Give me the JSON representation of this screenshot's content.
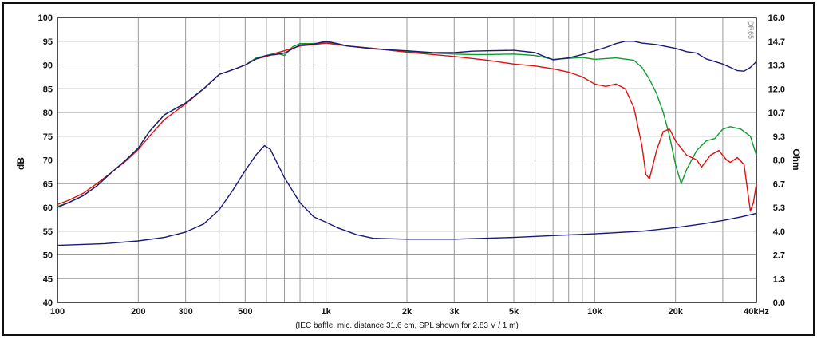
{
  "chart_data": {
    "type": "line",
    "caption": "(IEC baffle, mic. distance 31.6 cm, SPL shown for 2.83 V / 1 m)",
    "watermark": "DR65",
    "x_scale": "log",
    "grid": true,
    "x_ticks": [
      "100",
      "200",
      "300",
      "500",
      "1k",
      "2k",
      "3k",
      "5k",
      "10k",
      "20k",
      "40kHz"
    ],
    "x_tick_values": [
      100,
      200,
      300,
      500,
      1000,
      2000,
      3000,
      5000,
      10000,
      20000,
      40000
    ],
    "xlim": [
      100,
      40000
    ],
    "y_left": {
      "label": "dB",
      "lim": [
        40,
        100
      ],
      "ticks": [
        "100",
        "95",
        "90",
        "85",
        "80",
        "75",
        "70",
        "65",
        "60",
        "55",
        "50",
        "45",
        "40"
      ]
    },
    "y_right": {
      "label": "Ohm",
      "lim": [
        0,
        16
      ],
      "ticks": [
        "16.0",
        "14.7",
        "13.3",
        "12.0",
        "10.7",
        "9.3",
        "8.0",
        "6.7",
        "5.3",
        "4.0",
        "2.7",
        "1.3",
        "0.0"
      ]
    },
    "colors": {
      "red": "#e01010",
      "green": "#109a30",
      "navy": "#1a1a7a",
      "grid": "#9a9a9a"
    },
    "series": [
      {
        "axis": "left",
        "color": "#109a30",
        "points": [
          [
            100,
            60.2
          ],
          [
            110,
            61
          ],
          [
            125,
            62.5
          ],
          [
            140,
            64.5
          ],
          [
            160,
            67.5
          ],
          [
            180,
            70
          ],
          [
            200,
            72.5
          ],
          [
            220,
            76
          ],
          [
            250,
            79.5
          ],
          [
            300,
            82
          ],
          [
            350,
            85
          ],
          [
            400,
            88
          ],
          [
            450,
            89
          ],
          [
            500,
            90
          ],
          [
            550,
            91.5
          ],
          [
            600,
            92
          ],
          [
            650,
            92.5
          ],
          [
            700,
            92
          ],
          [
            750,
            93.8
          ],
          [
            800,
            94.5
          ],
          [
            900,
            94.5
          ],
          [
            1000,
            94.8
          ],
          [
            1100,
            94.5
          ],
          [
            1200,
            94
          ],
          [
            1500,
            93.5
          ],
          [
            1800,
            93
          ],
          [
            2000,
            92.8
          ],
          [
            2500,
            92.5
          ],
          [
            3000,
            92.3
          ],
          [
            3500,
            92.2
          ],
          [
            4000,
            92.2
          ],
          [
            5000,
            92.3
          ],
          [
            6000,
            92
          ],
          [
            7000,
            91.2
          ],
          [
            8000,
            91.4
          ],
          [
            9000,
            91.6
          ],
          [
            10000,
            91.2
          ],
          [
            12000,
            91.5
          ],
          [
            14000,
            91
          ],
          [
            15000,
            89.5
          ],
          [
            16000,
            87
          ],
          [
            17000,
            84
          ],
          [
            18000,
            80
          ],
          [
            19000,
            75
          ],
          [
            20000,
            69
          ],
          [
            21000,
            65
          ],
          [
            22000,
            68
          ],
          [
            24000,
            72
          ],
          [
            26000,
            74
          ],
          [
            28000,
            74.5
          ],
          [
            30000,
            76.5
          ],
          [
            32000,
            77
          ],
          [
            35000,
            76.5
          ],
          [
            38000,
            75
          ],
          [
            40000,
            71
          ]
        ]
      },
      {
        "axis": "left",
        "color": "#e01010",
        "points": [
          [
            100,
            60.6
          ],
          [
            110,
            61.5
          ],
          [
            125,
            63
          ],
          [
            140,
            65
          ],
          [
            160,
            67.5
          ],
          [
            180,
            69.8
          ],
          [
            200,
            72.2
          ],
          [
            220,
            75
          ],
          [
            250,
            78.5
          ],
          [
            300,
            81.8
          ],
          [
            350,
            85
          ],
          [
            400,
            88
          ],
          [
            450,
            89
          ],
          [
            500,
            90
          ],
          [
            550,
            91.3
          ],
          [
            600,
            91.8
          ],
          [
            650,
            92.5
          ],
          [
            700,
            93
          ],
          [
            800,
            94
          ],
          [
            900,
            94.3
          ],
          [
            1000,
            94.6
          ],
          [
            1200,
            94
          ],
          [
            1500,
            93.5
          ],
          [
            2000,
            92.7
          ],
          [
            3000,
            91.8
          ],
          [
            4000,
            91
          ],
          [
            5000,
            90.2
          ],
          [
            6000,
            89.8
          ],
          [
            7000,
            89.2
          ],
          [
            8000,
            88.5
          ],
          [
            9000,
            87.5
          ],
          [
            10000,
            86
          ],
          [
            11000,
            85.5
          ],
          [
            12000,
            86
          ],
          [
            13000,
            85
          ],
          [
            14000,
            81
          ],
          [
            15000,
            73
          ],
          [
            15500,
            67
          ],
          [
            16000,
            66
          ],
          [
            17000,
            72
          ],
          [
            18000,
            76
          ],
          [
            19000,
            76.5
          ],
          [
            20000,
            74
          ],
          [
            22000,
            71
          ],
          [
            24000,
            70
          ],
          [
            25000,
            68.5
          ],
          [
            27000,
            71
          ],
          [
            29000,
            72
          ],
          [
            31000,
            70
          ],
          [
            32000,
            69.5
          ],
          [
            34000,
            70.5
          ],
          [
            36000,
            69
          ],
          [
            37000,
            64
          ],
          [
            38000,
            59.2
          ],
          [
            39000,
            61
          ],
          [
            40000,
            65
          ]
        ]
      },
      {
        "axis": "left",
        "color": "#1a1a7a",
        "points": [
          [
            100,
            60
          ],
          [
            110,
            61
          ],
          [
            125,
            62.5
          ],
          [
            140,
            64.5
          ],
          [
            160,
            67.5
          ],
          [
            180,
            70
          ],
          [
            200,
            72.5
          ],
          [
            220,
            76
          ],
          [
            250,
            79.5
          ],
          [
            300,
            82
          ],
          [
            350,
            85
          ],
          [
            400,
            88
          ],
          [
            450,
            89
          ],
          [
            500,
            90
          ],
          [
            550,
            91.3
          ],
          [
            600,
            92
          ],
          [
            650,
            92.2
          ],
          [
            700,
            92.5
          ],
          [
            800,
            94.2
          ],
          [
            900,
            94.4
          ],
          [
            1000,
            95
          ],
          [
            1100,
            94.5
          ],
          [
            1200,
            94
          ],
          [
            1500,
            93.4
          ],
          [
            2000,
            93
          ],
          [
            2500,
            92.6
          ],
          [
            3000,
            92.6
          ],
          [
            3500,
            92.9
          ],
          [
            4000,
            93
          ],
          [
            5000,
            93.1
          ],
          [
            6000,
            92.6
          ],
          [
            6500,
            91.8
          ],
          [
            7000,
            91.1
          ],
          [
            8000,
            91.5
          ],
          [
            9000,
            92.2
          ],
          [
            10000,
            93
          ],
          [
            11000,
            93.7
          ],
          [
            12000,
            94.5
          ],
          [
            13000,
            95
          ],
          [
            14000,
            95
          ],
          [
            15000,
            94.6
          ],
          [
            17000,
            94.3
          ],
          [
            20000,
            93.5
          ],
          [
            22000,
            92.8
          ],
          [
            24000,
            92.5
          ],
          [
            26000,
            91.3
          ],
          [
            30000,
            90.2
          ],
          [
            32000,
            89.5
          ],
          [
            34000,
            88.8
          ],
          [
            36000,
            88.7
          ],
          [
            38000,
            89.5
          ],
          [
            40000,
            90.7
          ]
        ]
      },
      {
        "axis": "right",
        "color": "#1a1a7a",
        "points": [
          [
            100,
            3.2
          ],
          [
            150,
            3.3
          ],
          [
            200,
            3.45
          ],
          [
            250,
            3.65
          ],
          [
            300,
            3.95
          ],
          [
            350,
            4.4
          ],
          [
            400,
            5.2
          ],
          [
            450,
            6.3
          ],
          [
            500,
            7.4
          ],
          [
            550,
            8.3
          ],
          [
            590,
            8.8
          ],
          [
            620,
            8.6
          ],
          [
            700,
            7.0
          ],
          [
            800,
            5.6
          ],
          [
            900,
            4.8
          ],
          [
            1000,
            4.5
          ],
          [
            1100,
            4.2
          ],
          [
            1300,
            3.8
          ],
          [
            1500,
            3.6
          ],
          [
            2000,
            3.55
          ],
          [
            3000,
            3.55
          ],
          [
            5000,
            3.65
          ],
          [
            7000,
            3.75
          ],
          [
            10000,
            3.85
          ],
          [
            15000,
            4.0
          ],
          [
            20000,
            4.2
          ],
          [
            25000,
            4.4
          ],
          [
            30000,
            4.6
          ],
          [
            35000,
            4.8
          ],
          [
            40000,
            5.0
          ]
        ]
      }
    ]
  }
}
